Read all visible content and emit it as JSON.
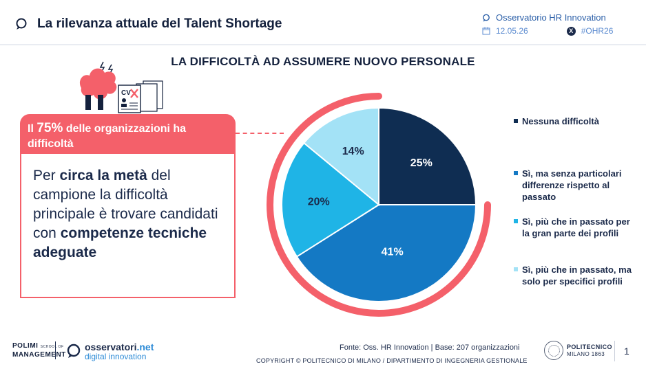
{
  "header": {
    "title": "La rilevanza attuale del Talent Shortage",
    "observatory": "Osservatorio HR Innovation",
    "date": "12.05.26",
    "hashtag": "#OHR26"
  },
  "callout": {
    "head_prefix": "Il ",
    "head_pct": "75%",
    "head_suffix": " delle organizzazioni ha difficoltà",
    "body_1": "Per ",
    "body_2": "circa la metà",
    "body_3": " del campione la difficoltà principale è trovare candidati con ",
    "body_4": "competenze tecniche adeguate"
  },
  "illustration": {
    "cv_label": "CV"
  },
  "chart_data": {
    "type": "pie",
    "title": "LA DIFFICOLTÀ AD ASSUMERE NUOVO PERSONALE",
    "slices": [
      {
        "label": "Nessuna difficoltà",
        "value": 25,
        "value_label": "25%",
        "color": "#0f2d52"
      },
      {
        "label": "Sì, ma senza particolari differenze rispetto al passato",
        "value": 41,
        "value_label": "41%",
        "color": "#1479c4"
      },
      {
        "label": "Sì, più che in passato per la gran parte dei profili",
        "value": 20,
        "value_label": "20%",
        "color": "#1fb4e6"
      },
      {
        "label": "Sì, più che in passato, ma solo per specifici profili",
        "value": 14,
        "value_label": "14%",
        "color": "#a3e2f6"
      }
    ],
    "highlight_ring_color": "#f4606a",
    "highlight_ring_share": 75,
    "legend_placement": "right"
  },
  "footer": {
    "polimi_line1": "POLIMI",
    "polimi_school": "SCHOOL OF",
    "polimi_line2": "MANAGEMENT",
    "obs_name": "osservatori",
    "obs_tld": ".net",
    "obs_sub": "digital innovation",
    "source": "Fonte: Oss. HR Innovation | Base: 207 organizzazioni",
    "copyright": "COPYRIGHT © POLITECNICO DI MILANO / DIPARTIMENTO DI INGEGNERIA GESTIONALE",
    "poli_name": "POLITECNICO",
    "poli_city": "MILANO 1863",
    "page": "1"
  }
}
